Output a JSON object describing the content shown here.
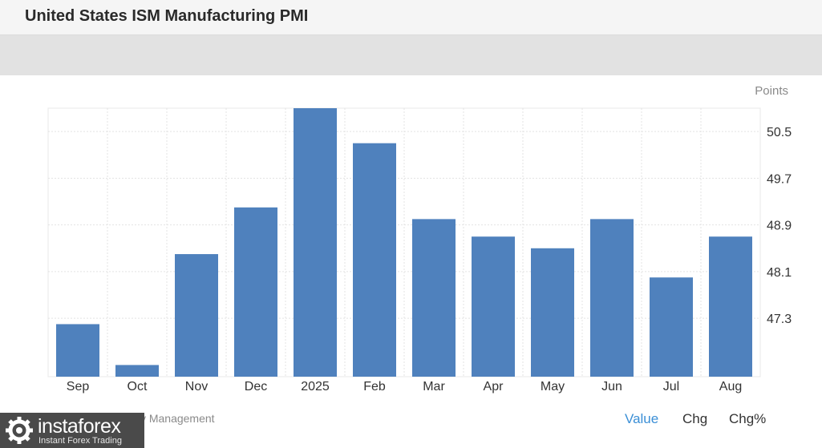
{
  "header": {
    "title": "United States ISM Manufacturing PMI"
  },
  "footer": {
    "source": "Institute for Supply Management",
    "tabs": [
      "Value",
      "Chg",
      "Chg%"
    ]
  },
  "brand": {
    "name": "instaforex",
    "tagline": "Instant Forex Trading"
  },
  "colors": {
    "bar": "#4f81bd",
    "active_tab": "#3b8fd6"
  },
  "chart_data": {
    "type": "bar",
    "title": "",
    "unit_label": "Points",
    "categories": [
      "Sep",
      "Oct",
      "Nov",
      "Dec",
      "2025",
      "Feb",
      "Mar",
      "Apr",
      "May",
      "Jun",
      "Jul",
      "Aug"
    ],
    "values": [
      47.2,
      46.5,
      48.4,
      49.2,
      50.9,
      50.3,
      49.0,
      48.7,
      48.5,
      49.0,
      48.0,
      48.7
    ],
    "yticks": [
      47.3,
      48.1,
      48.9,
      49.7,
      50.5
    ],
    "ylim": [
      46.3,
      50.9
    ],
    "y_axis_position": "right",
    "grid": true
  }
}
